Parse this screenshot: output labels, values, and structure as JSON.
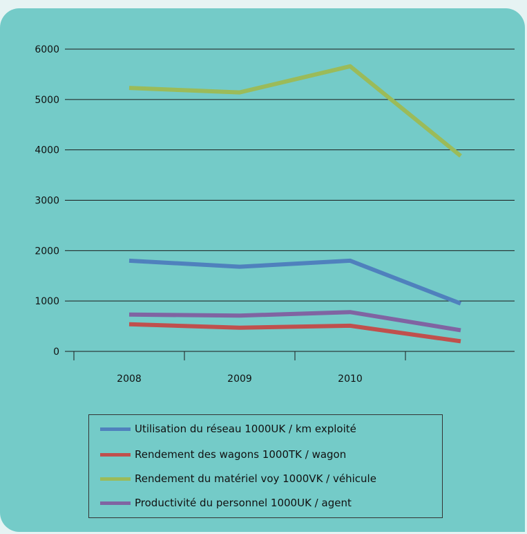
{
  "chart_data": {
    "type": "line",
    "categories": [
      "2008",
      "2009",
      "2010",
      ""
    ],
    "ylim": [
      0,
      6000
    ],
    "yticks": [
      "0",
      "1000",
      "2000",
      "3000",
      "4000",
      "5000",
      "6000"
    ],
    "grid": true,
    "legend_position": "bottom",
    "series": [
      {
        "name": "Utilisation du réseau  1000UK / km exploité",
        "color": "#4f81bd",
        "values": [
          1800,
          1680,
          1800,
          950
        ]
      },
      {
        "name": "Rendement des wagons  1000TK / wagon",
        "color": "#c0504d",
        "values": [
          540,
          470,
          510,
          200
        ]
      },
      {
        "name": "Rendement du matériel voy  1000VK / véhicule",
        "color": "#9bbb59",
        "values": [
          5230,
          5140,
          5660,
          3880
        ]
      },
      {
        "name": "Productivité du personnel 1000UK / agent",
        "color": "#8064a2",
        "values": [
          730,
          710,
          780,
          420
        ]
      }
    ]
  }
}
